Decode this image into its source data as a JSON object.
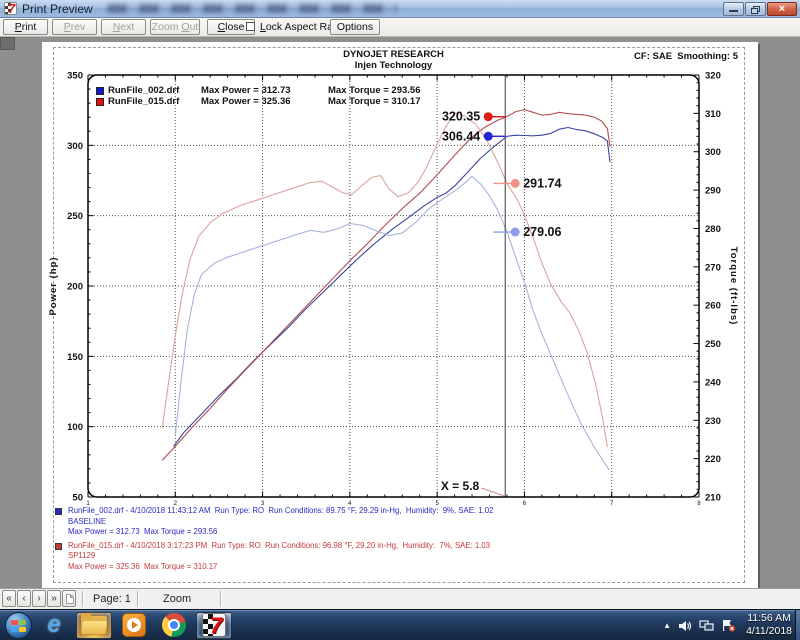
{
  "window": {
    "title": "Print Preview"
  },
  "toolbar": {
    "print_label": "Print",
    "prev_label": "Prev",
    "next_label": "Next",
    "zoom_out_label": "Zoom Out",
    "close_label": "Close",
    "lock_aspect_label": "Lock Aspect Ratio",
    "lock_aspect_checked": false,
    "options_label": "Options"
  },
  "chart": {
    "header_line1": "DYNOJET RESEARCH",
    "header_line2": "Injen Technology",
    "header_right": "CF: SAE  Smoothing: 5",
    "legend": {
      "rows": [
        {
          "color": "#1616d0",
          "name": "RunFile_002.drf",
          "power": "Max Power = 312.73",
          "torque": "Max Torque = 293.56"
        },
        {
          "color": "#e01414",
          "name": "RunFile_015.drf",
          "power": "Max Power = 325.36",
          "torque": "Max Torque = 310.17"
        }
      ]
    },
    "cursor": {
      "x": 5.78,
      "label": "X = 5.8",
      "markers": [
        {
          "label": "320.35",
          "axis": "power",
          "value": 320.35,
          "color": "#e11a1a",
          "side": "left"
        },
        {
          "label": "306.44",
          "axis": "power",
          "value": 306.44,
          "color": "#2424d8",
          "side": "left"
        },
        {
          "label": "291.74",
          "axis": "torque",
          "value": 291.74,
          "color": "#ee9288",
          "side": "right"
        },
        {
          "label": "279.06",
          "axis": "torque",
          "value": 279.06,
          "color": "#8f9dea",
          "side": "right"
        }
      ]
    }
  },
  "chart_data": {
    "type": "line",
    "x_range": [
      1,
      8
    ],
    "x_major": 1,
    "x_minor": 0.2,
    "x_tick_labels": [
      "1",
      "2",
      "3",
      "4",
      "5",
      "6",
      "7",
      "8"
    ],
    "grid_x": [
      2,
      3,
      4,
      5,
      6,
      7
    ],
    "power_axis": {
      "label": "Power (hp)",
      "range": [
        50,
        350
      ],
      "major": 50,
      "minor": 10
    },
    "torque_axis": {
      "label": "Torque (ft-lbs)",
      "range": [
        210,
        320
      ],
      "major": 10,
      "minor": 2
    },
    "grid_power": [
      100,
      150,
      200,
      250,
      300
    ],
    "series": [
      {
        "name": "RunFile_002.drf power",
        "axis": "power",
        "color": "#3c44a0",
        "points": [
          [
            1.98,
            86
          ],
          [
            2.1,
            96
          ],
          [
            2.3,
            109
          ],
          [
            2.5,
            122
          ],
          [
            2.7,
            134
          ],
          [
            2.9,
            147
          ],
          [
            3.1,
            159
          ],
          [
            3.3,
            171
          ],
          [
            3.5,
            184
          ],
          [
            3.7,
            196
          ],
          [
            3.9,
            208
          ],
          [
            4.1,
            220
          ],
          [
            4.3,
            231
          ],
          [
            4.5,
            241
          ],
          [
            4.7,
            250
          ],
          [
            4.85,
            257
          ],
          [
            5.0,
            263
          ],
          [
            5.1,
            266
          ],
          [
            5.2,
            271
          ],
          [
            5.35,
            281
          ],
          [
            5.5,
            291
          ],
          [
            5.65,
            299
          ],
          [
            5.8,
            306.4
          ],
          [
            5.9,
            307.2
          ],
          [
            6.0,
            307
          ],
          [
            6.1,
            306.8
          ],
          [
            6.2,
            307.2
          ],
          [
            6.3,
            308.5
          ],
          [
            6.4,
            311.5
          ],
          [
            6.5,
            312.7
          ],
          [
            6.6,
            311.2
          ],
          [
            6.7,
            310.3
          ],
          [
            6.8,
            308.2
          ],
          [
            6.9,
            305.5
          ],
          [
            6.95,
            303
          ],
          [
            6.98,
            288
          ]
        ]
      },
      {
        "name": "RunFile_015.drf power",
        "axis": "power",
        "color": "#b14d4d",
        "points": [
          [
            1.85,
            76
          ],
          [
            2.0,
            86
          ],
          [
            2.2,
            100
          ],
          [
            2.4,
            113
          ],
          [
            2.6,
            127
          ],
          [
            2.8,
            140
          ],
          [
            3.0,
            153
          ],
          [
            3.2,
            166
          ],
          [
            3.4,
            179
          ],
          [
            3.6,
            192
          ],
          [
            3.8,
            205
          ],
          [
            4.0,
            218
          ],
          [
            4.2,
            230
          ],
          [
            4.4,
            243
          ],
          [
            4.6,
            255
          ],
          [
            4.8,
            266
          ],
          [
            5.0,
            279
          ],
          [
            5.2,
            293
          ],
          [
            5.4,
            306
          ],
          [
            5.55,
            313
          ],
          [
            5.7,
            318
          ],
          [
            5.8,
            320.4
          ],
          [
            5.9,
            324
          ],
          [
            6.0,
            325.4
          ],
          [
            6.1,
            323.5
          ],
          [
            6.2,
            321.5
          ],
          [
            6.3,
            322
          ],
          [
            6.4,
            323.5
          ],
          [
            6.5,
            322.5
          ],
          [
            6.6,
            322
          ],
          [
            6.7,
            321.5
          ],
          [
            6.8,
            320
          ],
          [
            6.88,
            317.5
          ],
          [
            6.95,
            312
          ],
          [
            6.98,
            299
          ]
        ]
      },
      {
        "name": "RunFile_002.drf torque",
        "axis": "torque",
        "color": "#a9b3dc",
        "points": [
          [
            2.0,
            226
          ],
          [
            2.07,
            241
          ],
          [
            2.14,
            254
          ],
          [
            2.22,
            263
          ],
          [
            2.3,
            268
          ],
          [
            2.45,
            271
          ],
          [
            2.6,
            272.5
          ],
          [
            2.8,
            274
          ],
          [
            3.0,
            275.5
          ],
          [
            3.2,
            277
          ],
          [
            3.4,
            278.5
          ],
          [
            3.55,
            279.5
          ],
          [
            3.7,
            279
          ],
          [
            3.85,
            279.8
          ],
          [
            4.0,
            281.3
          ],
          [
            4.15,
            280.8
          ],
          [
            4.3,
            279.4
          ],
          [
            4.45,
            278.2
          ],
          [
            4.6,
            278.8
          ],
          [
            4.75,
            281.5
          ],
          [
            4.9,
            285
          ],
          [
            5.05,
            287.5
          ],
          [
            5.2,
            289.8
          ],
          [
            5.3,
            291.5
          ],
          [
            5.4,
            293.6
          ],
          [
            5.5,
            291.5
          ],
          [
            5.6,
            288.5
          ],
          [
            5.7,
            284.5
          ],
          [
            5.8,
            279.1
          ],
          [
            5.9,
            272.5
          ],
          [
            6.0,
            266
          ],
          [
            6.1,
            258.5
          ],
          [
            6.2,
            252.5
          ],
          [
            6.35,
            244.5
          ],
          [
            6.5,
            236.5
          ],
          [
            6.65,
            229
          ],
          [
            6.8,
            223
          ],
          [
            6.9,
            219.5
          ],
          [
            6.97,
            217
          ]
        ]
      },
      {
        "name": "RunFile_015.drf torque",
        "axis": "torque",
        "color": "#dba49e",
        "points": [
          [
            1.85,
            228
          ],
          [
            1.93,
            241
          ],
          [
            2.0,
            252
          ],
          [
            2.08,
            263
          ],
          [
            2.17,
            272
          ],
          [
            2.27,
            278
          ],
          [
            2.4,
            281.5
          ],
          [
            2.55,
            284
          ],
          [
            2.75,
            286
          ],
          [
            2.95,
            287.5
          ],
          [
            3.15,
            289
          ],
          [
            3.35,
            290.5
          ],
          [
            3.55,
            292
          ],
          [
            3.68,
            292.3
          ],
          [
            3.8,
            290.8
          ],
          [
            3.92,
            289.3
          ],
          [
            4.02,
            288.8
          ],
          [
            4.12,
            290.8
          ],
          [
            4.25,
            293.3
          ],
          [
            4.35,
            293.8
          ],
          [
            4.45,
            290.3
          ],
          [
            4.55,
            288.3
          ],
          [
            4.67,
            289.3
          ],
          [
            4.78,
            292
          ],
          [
            4.88,
            296
          ],
          [
            5.0,
            302
          ],
          [
            5.1,
            306.5
          ],
          [
            5.2,
            310.2
          ],
          [
            5.32,
            309.3
          ],
          [
            5.45,
            307
          ],
          [
            5.58,
            302.5
          ],
          [
            5.7,
            297
          ],
          [
            5.8,
            291.7
          ],
          [
            5.92,
            287.5
          ],
          [
            6.0,
            283.5
          ],
          [
            6.1,
            277.5
          ],
          [
            6.2,
            271
          ],
          [
            6.3,
            265.5
          ],
          [
            6.42,
            261
          ],
          [
            6.52,
            258
          ],
          [
            6.62,
            253.5
          ],
          [
            6.72,
            247.5
          ],
          [
            6.82,
            239
          ],
          [
            6.9,
            230
          ],
          [
            6.95,
            223
          ]
        ]
      }
    ]
  },
  "footer_runs": [
    {
      "color": "#2a2ac4",
      "line1": "RunFile_002.drf - 4/10/2018 11:43:12 AM  Run Type: RO  Run Conditions: 89.75 °F, 29.29 in-Hg,  Humidity:  9%, SAE: 1.02",
      "line2": "BASELINE",
      "line3": "Max Power = 312.73  Max Torque = 293.56"
    },
    {
      "color": "#c43a3a",
      "line1": "RunFile_015.drf - 4/10/2018 3:17:23 PM  Run Type: RO  Run Conditions: 96.98 °F, 29.20 in-Hg,  Humidity:  7%, SAE: 1.03",
      "line2": "SP1129",
      "line3": "Max Power = 325.36  Max Torque = 310.17"
    }
  ],
  "statusbar": {
    "nav_first": "«",
    "nav_prev": "‹",
    "nav_next": "›",
    "nav_last": "»",
    "page_label": "Page: 1",
    "zoom_label": "Zoom"
  },
  "taskbar": {
    "icons": [
      {
        "name": "start"
      },
      {
        "name": "internet-explorer"
      },
      {
        "name": "windows-explorer",
        "active": true
      },
      {
        "name": "media-player"
      },
      {
        "name": "chrome"
      },
      {
        "name": "dynojet-winpep",
        "active": true
      }
    ],
    "tray_time": "11:56 AM",
    "tray_date": "4/11/2018"
  }
}
